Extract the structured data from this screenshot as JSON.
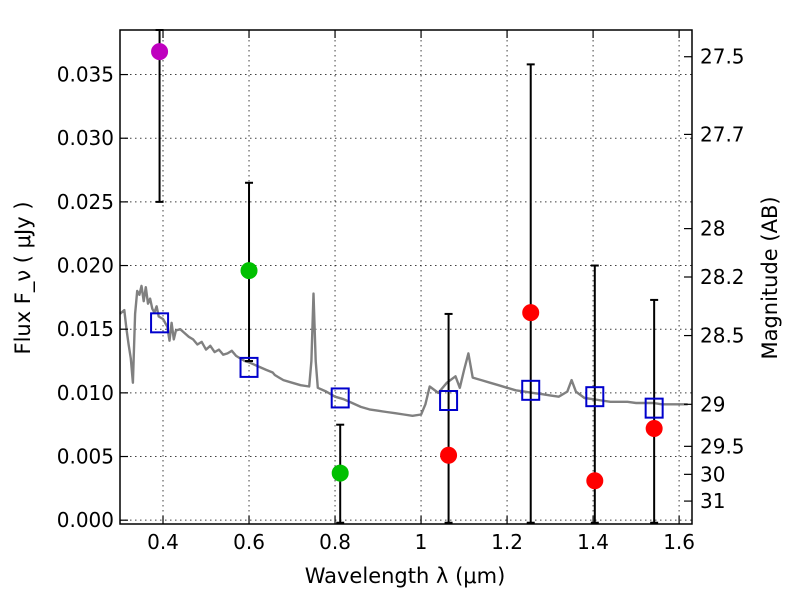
{
  "chart_data": {
    "type": "scatter",
    "xlabel": "Wavelength  λ (μm)",
    "ylabel": "Flux  F_ν  ( μJy )",
    "ylabel_right": "Magnitude (AB)",
    "xlim": [
      0.3,
      1.63
    ],
    "ylim": [
      -0.0003,
      0.0385
    ],
    "x_ticks": [
      {
        "value": 0.4,
        "label": "0.4"
      },
      {
        "value": 0.6,
        "label": "0.6"
      },
      {
        "value": 0.8,
        "label": "0.8"
      },
      {
        "value": 1.0,
        "label": "1"
      },
      {
        "value": 1.2,
        "label": "1.2"
      },
      {
        "value": 1.4,
        "label": "1.4"
      },
      {
        "value": 1.6,
        "label": "1.6"
      }
    ],
    "y_ticks": [
      {
        "value": 0.0,
        "label": "0.000"
      },
      {
        "value": 0.005,
        "label": "0.005"
      },
      {
        "value": 0.01,
        "label": "0.010"
      },
      {
        "value": 0.015,
        "label": "0.015"
      },
      {
        "value": 0.02,
        "label": "0.020"
      },
      {
        "value": 0.025,
        "label": "0.025"
      },
      {
        "value": 0.03,
        "label": "0.030"
      },
      {
        "value": 0.035,
        "label": "0.035"
      }
    ],
    "mag_ticks": [
      {
        "flux": 0.0364,
        "label": "27.5"
      },
      {
        "flux": 0.0303,
        "label": "27.7"
      },
      {
        "flux": 0.0229,
        "label": "28"
      },
      {
        "flux": 0.0191,
        "label": "28.2"
      },
      {
        "flux": 0.0145,
        "label": "28.5"
      },
      {
        "flux": 0.0091,
        "label": "29"
      },
      {
        "flux": 0.0058,
        "label": "29.5"
      },
      {
        "flux": 0.0036,
        "label": "30"
      },
      {
        "flux": 0.0015,
        "label": "31"
      }
    ],
    "observed": [
      {
        "x": 0.392,
        "y": 0.0368,
        "err_lo": 0.025,
        "err_hi": 0.0385,
        "color": "#bf00bf"
      },
      {
        "x": 0.6,
        "y": 0.0196,
        "err_lo": 0.0125,
        "err_hi": 0.0265,
        "color": "#00c000"
      },
      {
        "x": 0.812,
        "y": 0.0037,
        "err_lo": -0.0002,
        "err_hi": 0.0075,
        "color": "#00c000"
      },
      {
        "x": 1.064,
        "y": 0.0051,
        "err_lo": -0.0002,
        "err_hi": 0.0162,
        "color": "#ff0000"
      },
      {
        "x": 1.255,
        "y": 0.0163,
        "err_lo": -0.0002,
        "err_hi": 0.0358,
        "color": "#ff0000"
      },
      {
        "x": 1.404,
        "y": 0.0031,
        "err_lo": -0.0002,
        "err_hi": 0.02,
        "color": "#ff0000"
      },
      {
        "x": 1.542,
        "y": 0.0072,
        "err_lo": -0.0002,
        "err_hi": 0.0173,
        "color": "#ff0000"
      }
    ],
    "model_photometry": [
      {
        "x": 0.392,
        "y": 0.0155
      },
      {
        "x": 0.6,
        "y": 0.012
      },
      {
        "x": 0.812,
        "y": 0.0096
      },
      {
        "x": 1.064,
        "y": 0.0094
      },
      {
        "x": 1.255,
        "y": 0.0102
      },
      {
        "x": 1.404,
        "y": 0.0097
      },
      {
        "x": 1.542,
        "y": 0.0088
      }
    ],
    "model_spectrum": {
      "x": [
        0.3,
        0.31,
        0.315,
        0.32,
        0.325,
        0.33,
        0.335,
        0.34,
        0.345,
        0.35,
        0.355,
        0.36,
        0.365,
        0.37,
        0.375,
        0.38,
        0.385,
        0.39,
        0.4,
        0.41,
        0.415,
        0.42,
        0.425,
        0.43,
        0.44,
        0.45,
        0.46,
        0.47,
        0.48,
        0.49,
        0.5,
        0.51,
        0.52,
        0.53,
        0.54,
        0.55,
        0.56,
        0.57,
        0.58,
        0.59,
        0.6,
        0.62,
        0.64,
        0.655,
        0.66,
        0.67,
        0.68,
        0.7,
        0.72,
        0.74,
        0.745,
        0.75,
        0.755,
        0.76,
        0.78,
        0.8,
        0.82,
        0.84,
        0.86,
        0.88,
        0.9,
        0.92,
        0.94,
        0.96,
        0.98,
        1.0,
        1.01,
        1.02,
        1.04,
        1.06,
        1.08,
        1.09,
        1.1,
        1.11,
        1.12,
        1.14,
        1.16,
        1.18,
        1.2,
        1.22,
        1.24,
        1.26,
        1.28,
        1.3,
        1.32,
        1.34,
        1.35,
        1.36,
        1.38,
        1.4,
        1.42,
        1.44,
        1.46,
        1.48,
        1.5,
        1.52,
        1.54,
        1.56,
        1.58,
        1.6,
        1.62
      ],
      "y": [
        0.0162,
        0.0165,
        0.015,
        0.0138,
        0.0127,
        0.0108,
        0.0162,
        0.018,
        0.0177,
        0.0184,
        0.0172,
        0.0183,
        0.017,
        0.0174,
        0.0166,
        0.0163,
        0.0168,
        0.016,
        0.0158,
        0.0152,
        0.0141,
        0.0155,
        0.0142,
        0.0149,
        0.015,
        0.0147,
        0.0144,
        0.0142,
        0.0138,
        0.014,
        0.0134,
        0.0137,
        0.0132,
        0.0134,
        0.013,
        0.0131,
        0.0133,
        0.0129,
        0.0127,
        0.0125,
        0.0124,
        0.0121,
        0.0118,
        0.0116,
        0.0114,
        0.0112,
        0.011,
        0.0108,
        0.0106,
        0.0105,
        0.0125,
        0.0178,
        0.0125,
        0.0104,
        0.0101,
        0.0097,
        0.0095,
        0.0092,
        0.0089,
        0.0087,
        0.0086,
        0.0085,
        0.0084,
        0.0083,
        0.0082,
        0.0083,
        0.0091,
        0.0105,
        0.01,
        0.0108,
        0.0113,
        0.0104,
        0.0118,
        0.0131,
        0.0112,
        0.011,
        0.0108,
        0.0106,
        0.0104,
        0.0102,
        0.0101,
        0.01,
        0.0099,
        0.0098,
        0.0097,
        0.0101,
        0.011,
        0.0101,
        0.0096,
        0.0095,
        0.0094,
        0.0093,
        0.0093,
        0.0093,
        0.0092,
        0.0092,
        0.0092,
        0.0091,
        0.0091,
        0.0091,
        0.0091
      ]
    }
  }
}
